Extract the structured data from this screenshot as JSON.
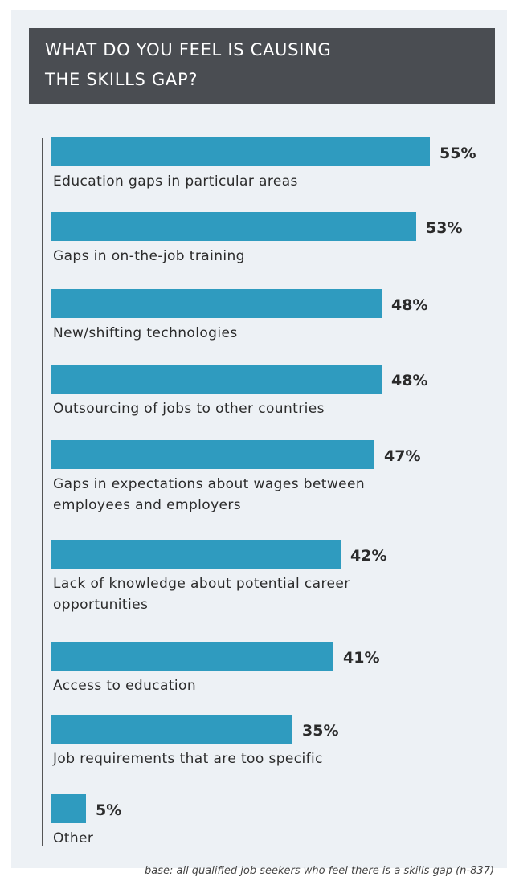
{
  "header": {
    "title_line1": "WHAT DO YOU FEEL IS CAUSING",
    "title_line2": "THE SKILLS GAP?"
  },
  "footnote": "base: all qualified job seekers who feel there is a skills gap (n-837)",
  "colors": {
    "bar": "#2f9bbf",
    "title_bg": "#4a4d52",
    "panel_bg": "#edf1f5"
  },
  "chart_data": {
    "type": "bar",
    "orientation": "horizontal",
    "title": "WHAT DO YOU FEEL IS CAUSING THE SKILLS GAP?",
    "categories": [
      [
        "Education gaps in particular areas"
      ],
      [
        "Gaps in on-the-job training"
      ],
      [
        "New/shifting technologies"
      ],
      [
        "Outsourcing of jobs to other countries"
      ],
      [
        "Gaps in expectations about wages between",
        "employees and employers"
      ],
      [
        "Lack of knowledge about potential career",
        "opportunities"
      ],
      [
        "Access to education"
      ],
      [
        "Job requirements that are too specific"
      ],
      [
        "Other"
      ]
    ],
    "values": [
      55,
      53,
      48,
      48,
      47,
      42,
      41,
      35,
      5
    ],
    "value_labels": [
      "55%",
      "53%",
      "48%",
      "48%",
      "47%",
      "42%",
      "41%",
      "35%",
      "5%"
    ],
    "xlim": [
      0,
      55
    ],
    "grid": false,
    "legend": "none"
  }
}
